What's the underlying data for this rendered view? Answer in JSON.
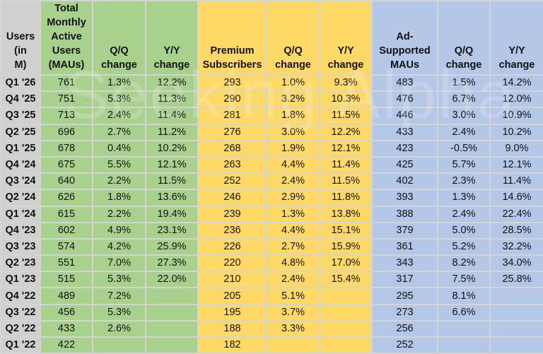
{
  "watermark": "Seeking Alpha",
  "chart_data": {
    "type": "table",
    "columns": [
      "Users (in M)",
      "Total Monthly Active Users (MAUs)",
      "Q/Q change",
      "Y/Y change",
      "Premium Subscribers",
      "Q/Q change",
      "Y/Y change",
      "Ad-Supported MAUs",
      "Q/Q change",
      "Y/Y change"
    ],
    "column_groups": [
      "label",
      "green",
      "green",
      "green",
      "yellow",
      "yellow",
      "yellow",
      "blue",
      "blue",
      "blue"
    ],
    "colors": {
      "label": "#d0d0d0",
      "green": "#a9d18e",
      "yellow": "#ffd966",
      "blue": "#b4c7e7"
    },
    "rows": [
      [
        "Q1 '26",
        "761",
        "1.3%",
        "12.2%",
        "293",
        "1.0%",
        "9.3%",
        "483",
        "1.5%",
        "14.2%"
      ],
      [
        "Q4 '25",
        "751",
        "5.3%",
        "11.3%",
        "290",
        "3.2%",
        "10.3%",
        "476",
        "6.7%",
        "12.0%"
      ],
      [
        "Q3 '25",
        "713",
        "2.4%",
        "11.4%",
        "281",
        "1.8%",
        "11.5%",
        "446",
        "3.0%",
        "10.9%"
      ],
      [
        "Q2 '25",
        "696",
        "2.7%",
        "11.2%",
        "276",
        "3.0%",
        "12.2%",
        "433",
        "2.4%",
        "10.2%"
      ],
      [
        "Q1 '25",
        "678",
        "0.4%",
        "10.2%",
        "268",
        "1.9%",
        "12.1%",
        "423",
        "-0.5%",
        "9.0%"
      ],
      [
        "Q4 '24",
        "675",
        "5.5%",
        "12.1%",
        "263",
        "4.4%",
        "11.4%",
        "425",
        "5.7%",
        "12.1%"
      ],
      [
        "Q3 '24",
        "640",
        "2.2%",
        "11.5%",
        "252",
        "2.4%",
        "11.5%",
        "402",
        "2.3%",
        "11.4%"
      ],
      [
        "Q2 '24",
        "626",
        "1.8%",
        "13.6%",
        "246",
        "2.9%",
        "11.8%",
        "393",
        "1.3%",
        "14.6%"
      ],
      [
        "Q1 '24",
        "615",
        "2.2%",
        "19.4%",
        "239",
        "1.3%",
        "13.8%",
        "388",
        "2.4%",
        "22.4%"
      ],
      [
        "Q4 '23",
        "602",
        "4.9%",
        "23.1%",
        "236",
        "4.4%",
        "15.1%",
        "379",
        "5.0%",
        "28.5%"
      ],
      [
        "Q3 '23",
        "574",
        "4.2%",
        "25.9%",
        "226",
        "2.7%",
        "15.9%",
        "361",
        "5.2%",
        "32.2%"
      ],
      [
        "Q2 '23",
        "551",
        "7.0%",
        "27.3%",
        "220",
        "4.8%",
        "17.0%",
        "343",
        "8.2%",
        "34.0%"
      ],
      [
        "Q1 '23",
        "515",
        "5.3%",
        "22.0%",
        "210",
        "2.4%",
        "15.4%",
        "317",
        "7.5%",
        "25.8%"
      ],
      [
        "Q4 '22",
        "489",
        "7.2%",
        "",
        "205",
        "5.1%",
        "",
        "295",
        "8.1%",
        ""
      ],
      [
        "Q3 '22",
        "456",
        "5.3%",
        "",
        "195",
        "3.7%",
        "",
        "273",
        "6.6%",
        ""
      ],
      [
        "Q2 '22",
        "433",
        "2.6%",
        "",
        "188",
        "3.3%",
        "",
        "256",
        "",
        ""
      ],
      [
        "Q1 '22",
        "422",
        "",
        "",
        "182",
        "",
        "",
        "252",
        "",
        ""
      ]
    ]
  }
}
